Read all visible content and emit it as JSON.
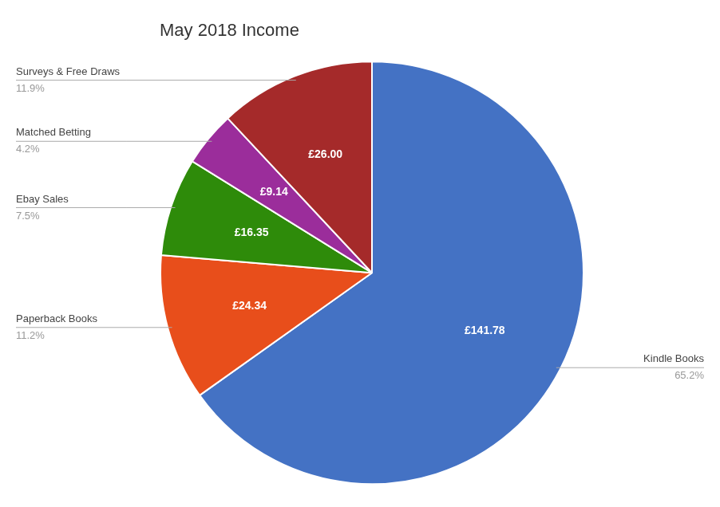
{
  "chart_data": {
    "type": "pie",
    "title": "May 2018 Income",
    "categories": [
      "Kindle Books",
      "Paperback Books",
      "Ebay Sales",
      "Matched Betting",
      "Surveys & Free Draws"
    ],
    "values": [
      141.78,
      24.34,
      16.35,
      9.14,
      26.0
    ],
    "value_labels": [
      "£141.78",
      "£24.34",
      "£16.35",
      "£9.14",
      "£26.00"
    ],
    "percentages": [
      {
        "value": 65.2,
        "label": "65.2%"
      },
      {
        "value": 11.2,
        "label": "11.2%"
      },
      {
        "value": 7.5,
        "label": "7.5%"
      },
      {
        "value": 4.2,
        "label": "4.2%"
      },
      {
        "value": 11.9,
        "label": "11.9%"
      }
    ],
    "colors": [
      "#4472C4",
      "#E84E1B",
      "#2E8B0A",
      "#9B2D9B",
      "#A52A2A"
    ],
    "data_labels": true,
    "legend": false
  }
}
